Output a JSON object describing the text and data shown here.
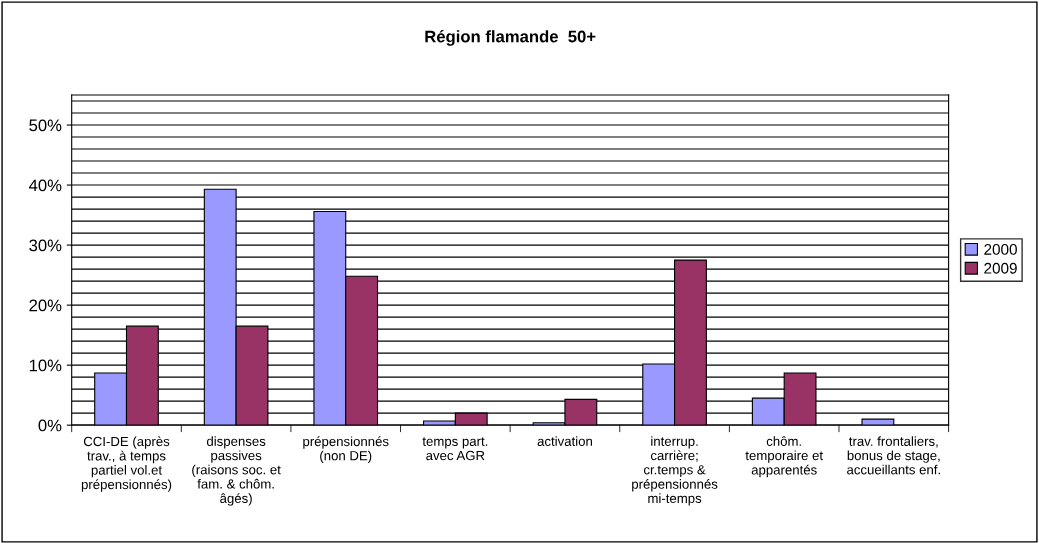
{
  "chart_data": {
    "type": "bar",
    "title": "Région flamande  50+",
    "categories": [
      "CCI-DE (après\ntrav., à temps\npartiel vol.et\nprépensionnés)",
      "dispenses\npassives\n(raisons soc. et\nfam. & chôm.\nâgés)",
      "prépensionnés\n(non DE)",
      "temps part.\navec AGR",
      "activation",
      "interrup.\ncarrière;\ncr.temps &\nprépensionnés\nmi-temps",
      "chôm.\ntemporaire et\napparentés",
      "trav. frontaliers,\nbonus de stage,\naccueillants enf."
    ],
    "series": [
      {
        "name": "2000",
        "color": "#9999ff",
        "values": [
          8.7,
          39.3,
          35.6,
          0.7,
          0.4,
          10.2,
          4.5,
          1.0
        ]
      },
      {
        "name": "2009",
        "color": "#993366",
        "values": [
          16.5,
          16.5,
          24.8,
          2.0,
          4.3,
          27.5,
          8.7,
          null
        ]
      }
    ],
    "ylim": [
      0,
      55
    ],
    "yticks": [
      {
        "value": 0,
        "label": "0%"
      },
      {
        "value": 10,
        "label": "10%"
      },
      {
        "value": 20,
        "label": "20%"
      },
      {
        "value": 30,
        "label": "30%"
      },
      {
        "value": 40,
        "label": "40%"
      },
      {
        "value": 50,
        "label": "50%"
      }
    ],
    "grid": "y",
    "legend": "right"
  }
}
